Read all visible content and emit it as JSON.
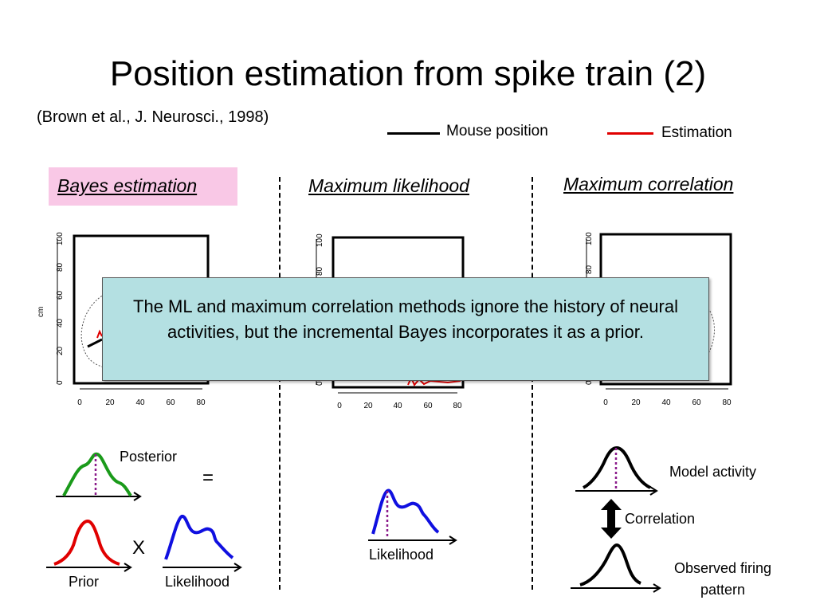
{
  "title": "Position estimation from spike train (2)",
  "citation": "(Brown et al., J. Neurosci., 1998)",
  "legend": {
    "mouse_position": {
      "label": "Mouse position",
      "color": "#000000"
    },
    "estimation": {
      "label": "Estimation",
      "color": "#e00000"
    }
  },
  "methods": {
    "bayes": "Bayes estimation",
    "ml": "Maximum likelihood",
    "mc": "Maximum correlation",
    "bayes_highlight_color": "#f9c8e6"
  },
  "plots": {
    "y_ticks": [
      "0",
      "20",
      "40",
      "60",
      "80",
      "100"
    ],
    "x_ticks": [
      "0",
      "20",
      "40",
      "60",
      "80"
    ],
    "y_label": "cm"
  },
  "callout": {
    "text": "The ML and maximum correlation methods ignore the history of neural activities, but the incremental Bayes incorporates it as a prior.",
    "color": "#b4e0e2"
  },
  "diagrams": {
    "posterior": "Posterior",
    "equals": "=",
    "times": "X",
    "prior": "Prior",
    "likelihood": "Likelihood",
    "ml_likelihood": "Likelihood",
    "model_activity": "Model activity",
    "correlation": "Correlation",
    "observed": "Observed firing pattern",
    "colors": {
      "posterior": "#1a9a1a",
      "prior": "#e00000",
      "likelihood": "#1010e0",
      "peak_marker": "#8a1a8a"
    }
  }
}
